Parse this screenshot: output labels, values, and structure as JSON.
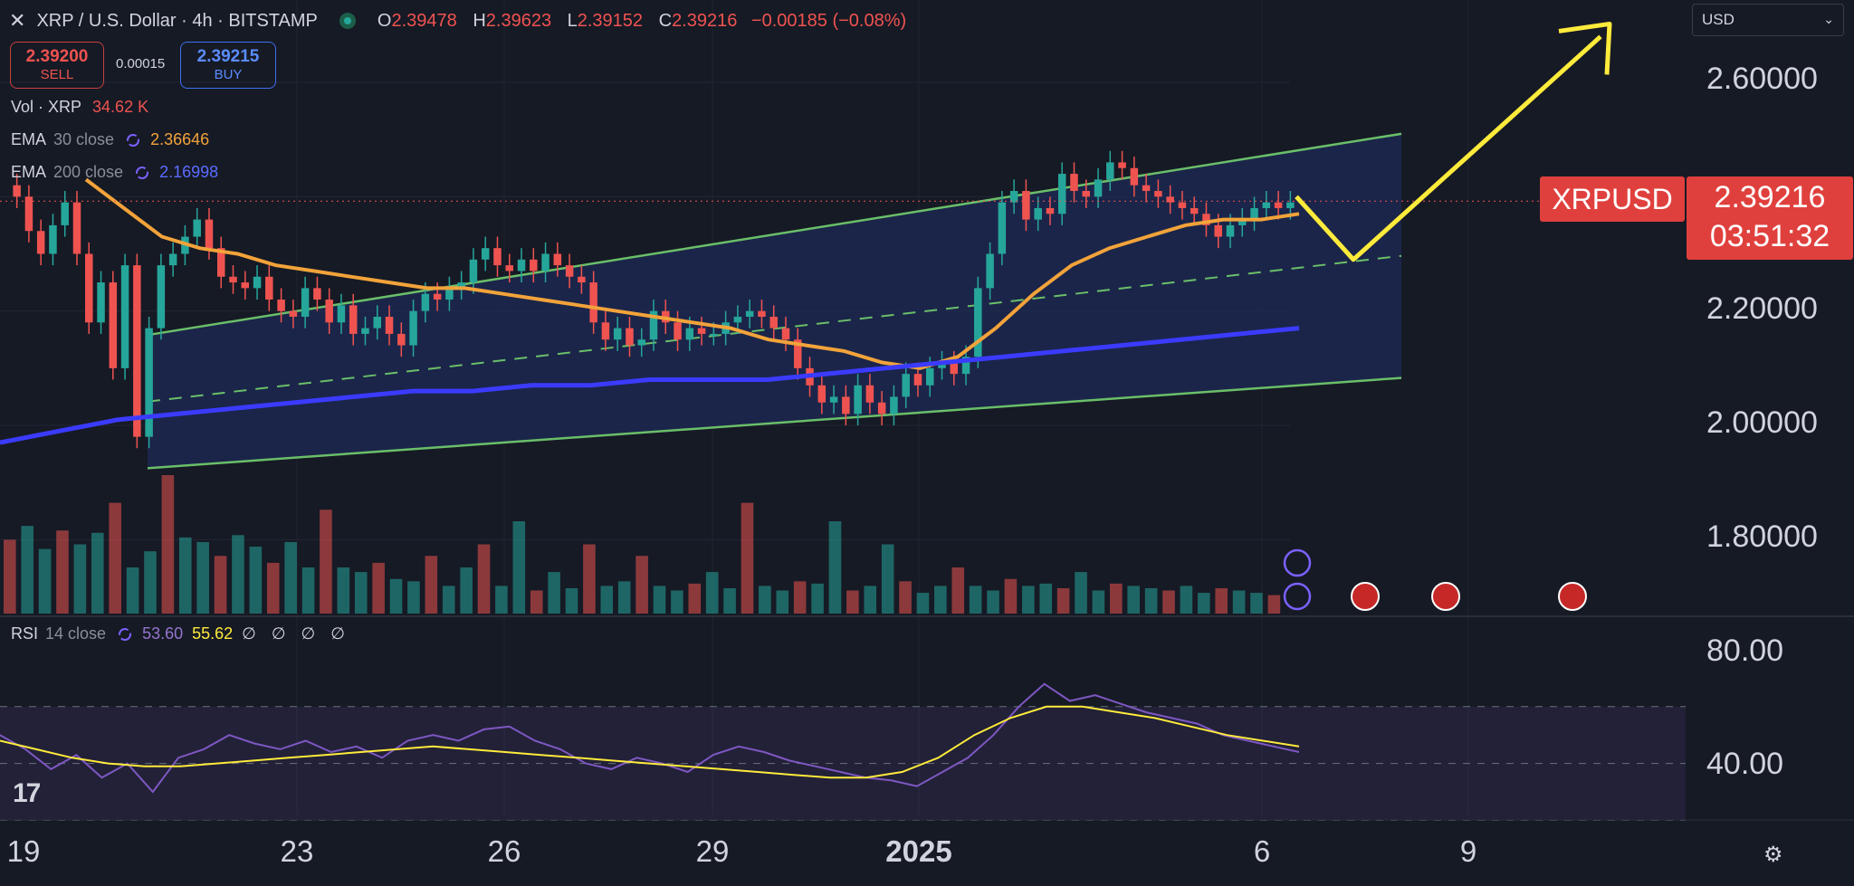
{
  "header": {
    "close_glyph": "✕",
    "title": "XRP / U.S. Dollar · 4h · BITSTAMP",
    "ohlc": {
      "o_label": "O",
      "o": "2.39478",
      "h_label": "H",
      "h": "2.39623",
      "l_label": "L",
      "l": "2.39152",
      "c_label": "C",
      "c": "2.39216",
      "change": "−0.00185 (−0.08%)"
    }
  },
  "trade": {
    "sell_price": "2.39200",
    "sell_label": "SELL",
    "spread": "0.00015",
    "buy_price": "2.39215",
    "buy_label": "BUY"
  },
  "legends": {
    "vol_name": "Vol · XRP",
    "vol_value": "34.62 K",
    "ema30_name": "EMA",
    "ema30_params": "30 close",
    "ema30_value": "2.36646",
    "ema200_name": "EMA",
    "ema200_params": "200 close",
    "ema200_value": "2.16998",
    "rsi_name": "RSI",
    "rsi_params": "14 close",
    "rsi_value": "53.60",
    "rsi_ma_value": "55.62",
    "rsi_extra": "∅ ∅ ∅ ∅"
  },
  "currency_select": {
    "value": "USD"
  },
  "price_tag": {
    "symbol": "XRPUSD",
    "price": "2.39216",
    "countdown": "03:51:32"
  },
  "price_axis": {
    "labels": [
      "2.60000",
      "2.20000",
      "2.00000",
      "1.80000"
    ]
  },
  "rsi_axis": {
    "labels": [
      "80.00",
      "40.00"
    ]
  },
  "time_axis": {
    "labels": [
      "19",
      "23",
      "26",
      "29",
      "2025",
      "6",
      "9"
    ]
  },
  "colors": {
    "background": "#161a25",
    "up": "#26a69a",
    "down": "#ef5350",
    "ema30": "#f2a33a",
    "ema200": "#3b3bff",
    "channel": "#6abf69",
    "channel_fill": "#1e2a55",
    "projection": "#ffeb3b",
    "rsi": "#7e57c2",
    "rsi_ma": "#ffeb3b"
  },
  "icons": [
    "close-icon",
    "live-dot-icon",
    "indicator-cycle-icon",
    "chevron-down-icon",
    "event-star-icon",
    "event-lightning-icon",
    "us-flag-icon",
    "tradingview-logo",
    "settings-icon"
  ],
  "chart_data": {
    "type": "candlestick",
    "symbol": "XRPUSD",
    "interval": "4h",
    "x_ticks": [
      "19",
      "23",
      "26",
      "29",
      "2025",
      "6",
      "9"
    ],
    "y_ticks": [
      1.8,
      2.0,
      2.2,
      2.6
    ],
    "ylim": [
      1.7,
      2.72
    ],
    "last_price": 2.39216,
    "candles_close": [
      2.4,
      2.34,
      2.3,
      2.35,
      2.39,
      2.3,
      2.18,
      2.25,
      2.1,
      2.28,
      1.98,
      2.17,
      2.28,
      2.3,
      2.33,
      2.36,
      2.31,
      2.26,
      2.25,
      2.24,
      2.26,
      2.22,
      2.2,
      2.19,
      2.24,
      2.22,
      2.18,
      2.21,
      2.16,
      2.17,
      2.19,
      2.16,
      2.14,
      2.2,
      2.23,
      2.22,
      2.24,
      2.25,
      2.29,
      2.31,
      2.28,
      2.27,
      2.29,
      2.27,
      2.3,
      2.28,
      2.26,
      2.25,
      2.18,
      2.15,
      2.17,
      2.14,
      2.15,
      2.2,
      2.18,
      2.15,
      2.17,
      2.16,
      2.16,
      2.18,
      2.19,
      2.2,
      2.19,
      2.17,
      2.15,
      2.1,
      2.07,
      2.04,
      2.05,
      2.02,
      2.07,
      2.04,
      2.02,
      2.05,
      2.09,
      2.07,
      2.1,
      2.11,
      2.09,
      2.12,
      2.24,
      2.3,
      2.39,
      2.41,
      2.36,
      2.38,
      2.37,
      2.44,
      2.41,
      2.4,
      2.43,
      2.46,
      2.45,
      2.42,
      2.41,
      2.4,
      2.39,
      2.38,
      2.37,
      2.35,
      2.33,
      2.35,
      2.36,
      2.38,
      2.39,
      2.38,
      2.39
    ],
    "ema30_close": [
      2.43,
      2.38,
      2.33,
      2.31,
      2.3,
      2.28,
      2.27,
      2.26,
      2.25,
      2.24,
      2.24,
      2.23,
      2.22,
      2.21,
      2.2,
      2.19,
      2.18,
      2.17,
      2.15,
      2.14,
      2.13,
      2.11,
      2.1,
      2.12,
      2.17,
      2.23,
      2.28,
      2.31,
      2.33,
      2.35,
      2.36,
      2.36,
      2.37
    ],
    "ema200_close": [
      1.97,
      1.99,
      2.01,
      2.02,
      2.03,
      2.04,
      2.05,
      2.06,
      2.06,
      2.07,
      2.07,
      2.08,
      2.08,
      2.08,
      2.09,
      2.1,
      2.11,
      2.12,
      2.13,
      2.14,
      2.15,
      2.16,
      2.17
    ],
    "rsi": [
      60,
      55,
      48,
      53,
      45,
      50,
      40,
      52,
      55,
      60,
      57,
      55,
      58,
      54,
      56,
      52,
      58,
      60,
      58,
      62,
      63,
      58,
      55,
      50,
      48,
      52,
      50,
      47,
      53,
      56,
      54,
      51,
      49,
      47,
      45,
      44,
      42,
      47,
      52,
      60,
      70,
      78,
      72,
      74,
      71,
      68,
      66,
      64,
      60,
      58,
      56,
      54
    ],
    "rsi_ma": [
      58,
      55,
      52,
      50,
      49,
      49,
      50,
      51,
      52,
      53,
      54,
      55,
      56,
      55,
      54,
      53,
      52,
      51,
      50,
      49,
      48,
      47,
      46,
      45,
      45,
      47,
      52,
      60,
      66,
      70,
      70,
      68,
      66,
      63,
      60,
      58,
      56
    ],
    "rsi_ticks": [
      80,
      40
    ],
    "volume": [
      32,
      38,
      28,
      36,
      30,
      35,
      48,
      20,
      27,
      60,
      33,
      31,
      25,
      34,
      29,
      22,
      31,
      20,
      45,
      20,
      18,
      22,
      15,
      14,
      25,
      12,
      20,
      30,
      12,
      40,
      10,
      18,
      11,
      30,
      12,
      14,
      25,
      12,
      10,
      13,
      18,
      11,
      48,
      12,
      10,
      14,
      13,
      40,
      10,
      12,
      30,
      14,
      9,
      12,
      20,
      12,
      10,
      15,
      12,
      13,
      11,
      18,
      10,
      13,
      12,
      11,
      10,
      12,
      9,
      11,
      10,
      9,
      8
    ],
    "channel": {
      "upper": [
        [
          2.16,
          "start"
        ],
        [
          2.51,
          "end"
        ]
      ],
      "lower": [
        [
          1.92,
          "start"
        ],
        [
          2.08,
          "end"
        ]
      ],
      "mid_dashed": true
    },
    "projection": {
      "description_visible": false,
      "points_price": [
        2.4,
        2.29,
        2.68
      ]
    }
  }
}
